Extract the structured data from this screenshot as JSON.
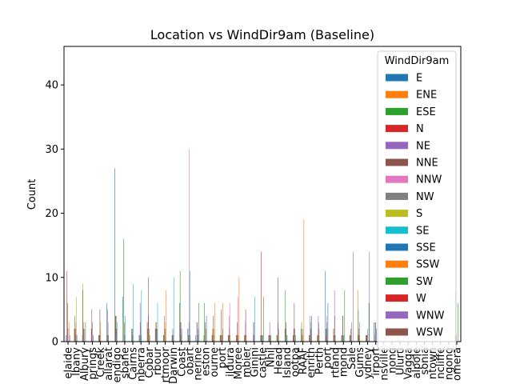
{
  "chart_data": {
    "type": "bar",
    "title": "Location vs WindDir9am (Baseline)",
    "xlabel": "",
    "ylabel": "Count",
    "ylim": [
      0,
      46
    ],
    "yticks": [
      0,
      10,
      20,
      30,
      40
    ],
    "grid": false,
    "legend": {
      "title": "WindDir9am",
      "placement": "top-right"
    },
    "categories": [
      "Adelaide",
      "Albany",
      "Albury",
      "AliceSprings",
      "BadgerysCreek",
      "Ballarat",
      "Bendigo",
      "Brisbane",
      "Cairns",
      "Canberra",
      "Cobar",
      "CoffsHarbour",
      "Dartmoor",
      "Darwin",
      "GoldCoast",
      "Hobart",
      "Katherine",
      "Launceston",
      "Melbourne",
      "MelbourneAirport",
      "Mildura",
      "Moree",
      "MountGambier",
      "MountGinini",
      "Newcastle",
      "Nhil",
      "NorahHead",
      "NorfolkIsland",
      "Nuriootpa",
      "PearceRAAF",
      "Penrith",
      "Perth",
      "PerthAirport",
      "Portland",
      "Richmond",
      "Sale",
      "SalmonGums",
      "Sydney",
      "SydneyAirport",
      "Townsville",
      "Tuggeranong",
      "Uluru",
      "WaggaWagga",
      "Walpole",
      "Watsonia",
      "Williamtown",
      "Witchcliffe",
      "Wollongong",
      "Woomera"
    ],
    "category_labels": [
      "elaide",
      "lbany",
      "Albury",
      "prings",
      "Creek",
      "allarat",
      "endigo",
      "sbane",
      "Cairns",
      "nberra",
      "Cobar",
      "rbour",
      "rtmoor",
      "Darwin",
      "Coast",
      "obart",
      "nerine",
      "eston",
      "ourne",
      "port",
      "ildura",
      "Moree",
      "mbier",
      "Ginini",
      "castle",
      "Nhil",
      "Head",
      "Island",
      "ootpa",
      "RAAF",
      "enrith",
      "Perth",
      "port",
      "rtland",
      "mond",
      "Sale",
      "Gums",
      "ydney",
      "irport",
      "nsville",
      "nong",
      "Uluru",
      "Vagga",
      "alpole",
      "sonia",
      "ntown",
      "ncliffe",
      "ngong",
      "omera"
    ],
    "series": [
      {
        "name": "E",
        "color": "#1f77b4",
        "values": [
          1,
          2,
          1,
          0,
          1,
          6,
          27,
          7,
          0,
          1,
          3,
          2,
          1,
          0,
          6,
          2,
          1,
          1,
          1,
          1,
          1,
          1,
          1,
          0,
          1,
          1,
          1,
          2,
          1,
          2,
          1,
          1,
          11,
          2,
          1,
          1,
          1,
          1,
          3,
          0,
          0,
          1,
          0,
          0,
          0,
          0,
          0,
          0,
          1
        ]
      },
      {
        "name": "ENE",
        "color": "#ff7f0e",
        "values": [
          0,
          2,
          9,
          0,
          1,
          1,
          4,
          3,
          0,
          0,
          3,
          3,
          1,
          0,
          5,
          1,
          0,
          1,
          1,
          1,
          1,
          1,
          1,
          0,
          1,
          1,
          1,
          2,
          1,
          2,
          1,
          1,
          1,
          2,
          1,
          1,
          8,
          1,
          0,
          0,
          0,
          0,
          0,
          0,
          0,
          0,
          0,
          0,
          1
        ]
      },
      {
        "name": "ESE",
        "color": "#2ca02c",
        "values": [
          0,
          4,
          8,
          0,
          1,
          1,
          4,
          16,
          2,
          1,
          2,
          2,
          1,
          1,
          11,
          1,
          0,
          6,
          1,
          1,
          1,
          1,
          1,
          0,
          1,
          1,
          1,
          8,
          1,
          3,
          1,
          1,
          2,
          1,
          1,
          1,
          5,
          1,
          0,
          0,
          0,
          0,
          0,
          0,
          0,
          0,
          0,
          0,
          8
        ]
      },
      {
        "name": "N",
        "color": "#d62728",
        "values": [
          11,
          2,
          3,
          2,
          1,
          0,
          2,
          0,
          0,
          0,
          2,
          2,
          0,
          1,
          2,
          0,
          0,
          0,
          2,
          1,
          1,
          1,
          1,
          1,
          14,
          1,
          0,
          0,
          2,
          0,
          1,
          1,
          1,
          1,
          1,
          1,
          1,
          1,
          0,
          0,
          0,
          0,
          0,
          0,
          0,
          0,
          0,
          0,
          1
        ]
      },
      {
        "name": "NE",
        "color": "#9467bd",
        "values": [
          2,
          1,
          2,
          1,
          1,
          5,
          4,
          0,
          2,
          6,
          4,
          2,
          4,
          1,
          3,
          2,
          3,
          0,
          1,
          1,
          2,
          3,
          3,
          3,
          1,
          3,
          3,
          2,
          2,
          0,
          4,
          4,
          2,
          8,
          4,
          1,
          2,
          1,
          1,
          0,
          0,
          0,
          0,
          0,
          0,
          0,
          0,
          0,
          1
        ]
      },
      {
        "name": "NNE",
        "color": "#8c564b",
        "values": [
          6,
          2,
          2,
          5,
          5,
          3,
          4,
          3,
          2,
          3,
          10,
          3,
          2,
          2,
          2,
          3,
          3,
          3,
          4,
          5,
          4,
          3,
          5,
          3,
          1,
          1,
          10,
          3,
          6,
          1,
          3,
          3,
          3,
          4,
          4,
          2,
          1,
          1,
          3,
          0,
          0,
          0,
          0,
          0,
          0,
          0,
          0,
          0,
          0
        ]
      },
      {
        "name": "NNW",
        "color": "#e377c2",
        "values": [
          2,
          3,
          2,
          1,
          2,
          1,
          1,
          1,
          1,
          2,
          2,
          1,
          2,
          1,
          3,
          30,
          3,
          1,
          1,
          1,
          6,
          7,
          4,
          1,
          1,
          1,
          1,
          1,
          2,
          1,
          1,
          2,
          4,
          1,
          1,
          1,
          1,
          1,
          1,
          0,
          0,
          0,
          0,
          0,
          0,
          0,
          0,
          0,
          1
        ]
      },
      {
        "name": "NW",
        "color": "#7f7f7f",
        "values": [
          2,
          1,
          2,
          3,
          1,
          1,
          2,
          1,
          1,
          1,
          2,
          2,
          2,
          1,
          1,
          1,
          1,
          2,
          1,
          1,
          1,
          1,
          1,
          1,
          1,
          1,
          2,
          1,
          2,
          2,
          2,
          2,
          2,
          1,
          1,
          3,
          3,
          2,
          3,
          0,
          0,
          0,
          0,
          0,
          0,
          0,
          0,
          0,
          0
        ]
      },
      {
        "name": "S",
        "color": "#bcbd22",
        "values": [
          0,
          7,
          0,
          0,
          3,
          0,
          0,
          0,
          0,
          0,
          2,
          0,
          3,
          0,
          0,
          0,
          0,
          2,
          2,
          1,
          1,
          1,
          1,
          0,
          0,
          1,
          1,
          1,
          1,
          1,
          1,
          1,
          0,
          0,
          1,
          0,
          1,
          0,
          0,
          0,
          0,
          0,
          0,
          0,
          0,
          0,
          0,
          0,
          0
        ]
      },
      {
        "name": "SE",
        "color": "#17becf",
        "values": [
          0,
          0,
          0,
          0,
          0,
          0,
          3,
          4,
          9,
          8,
          1,
          6,
          0,
          10,
          2,
          11,
          0,
          0,
          0,
          0,
          0,
          0,
          0,
          7,
          1,
          1,
          0,
          1,
          0,
          0,
          0,
          0,
          0,
          0,
          1,
          0,
          0,
          0,
          0,
          0,
          0,
          0,
          0,
          0,
          0,
          0,
          0,
          0,
          0
        ]
      },
      {
        "name": "SSE",
        "color": "#1f77b4",
        "values": [
          0,
          1,
          0,
          1,
          0,
          0,
          0,
          0,
          0,
          0,
          0,
          0,
          0,
          0,
          0,
          1,
          2,
          4,
          0,
          2,
          0,
          0,
          0,
          0,
          0,
          0,
          0,
          0,
          1,
          0,
          4,
          0,
          6,
          0,
          0,
          0,
          0,
          0,
          2,
          0,
          0,
          0,
          0,
          0,
          0,
          0,
          0,
          0,
          0
        ]
      },
      {
        "name": "SSW",
        "color": "#ff7f0e",
        "values": [
          3,
          0,
          0,
          0,
          0,
          0,
          0,
          0,
          0,
          0,
          1,
          0,
          8,
          0,
          0,
          0,
          0,
          0,
          6,
          6,
          0,
          10,
          0,
          0,
          0,
          0,
          0,
          0,
          0,
          19,
          0,
          0,
          0,
          0,
          0,
          0,
          0,
          0,
          0,
          0,
          0,
          0,
          0,
          0,
          0,
          0,
          0,
          0,
          0
        ]
      },
      {
        "name": "SW",
        "color": "#2ca02c",
        "values": [
          0,
          0,
          3,
          0,
          0,
          0,
          0,
          0,
          0,
          0,
          0,
          0,
          0,
          0,
          0,
          0,
          6,
          0,
          0,
          0,
          0,
          0,
          0,
          0,
          7,
          0,
          0,
          0,
          0,
          0,
          0,
          0,
          0,
          0,
          8,
          0,
          0,
          6,
          0,
          0,
          0,
          0,
          0,
          0,
          0,
          0,
          0,
          0,
          6
        ]
      },
      {
        "name": "W",
        "color": "#d62728",
        "values": [
          0,
          0,
          0,
          0,
          0,
          0,
          0,
          0,
          0,
          0,
          0,
          0,
          0,
          0,
          0,
          0,
          0,
          0,
          0,
          0,
          0,
          0,
          0,
          0,
          0,
          0,
          0,
          0,
          0,
          0,
          0,
          0,
          0,
          0,
          0,
          0,
          0,
          0,
          0,
          0,
          0,
          0,
          0,
          0,
          0,
          0,
          0,
          0,
          0
        ]
      },
      {
        "name": "WNW",
        "color": "#9467bd",
        "values": [
          1,
          0,
          0,
          0,
          0,
          0,
          0,
          0,
          0,
          0,
          0,
          0,
          0,
          0,
          0,
          0,
          0,
          0,
          0,
          0,
          0,
          0,
          0,
          0,
          0,
          0,
          0,
          0,
          0,
          0,
          0,
          0,
          0,
          0,
          0,
          14,
          0,
          14,
          20,
          0,
          0,
          0,
          0,
          0,
          0,
          0,
          0,
          0,
          0
        ]
      },
      {
        "name": "WSW",
        "color": "#8c564b",
        "values": [
          0,
          0,
          0,
          0,
          0,
          0,
          0,
          0,
          0,
          0,
          0,
          0,
          0,
          0,
          0,
          0,
          0,
          0,
          0,
          0,
          0,
          0,
          0,
          0,
          0,
          0,
          0,
          0,
          0,
          0,
          0,
          0,
          0,
          0,
          0,
          0,
          0,
          0,
          0,
          0,
          0,
          0,
          0,
          0,
          0,
          0,
          0,
          0,
          0
        ]
      }
    ]
  }
}
